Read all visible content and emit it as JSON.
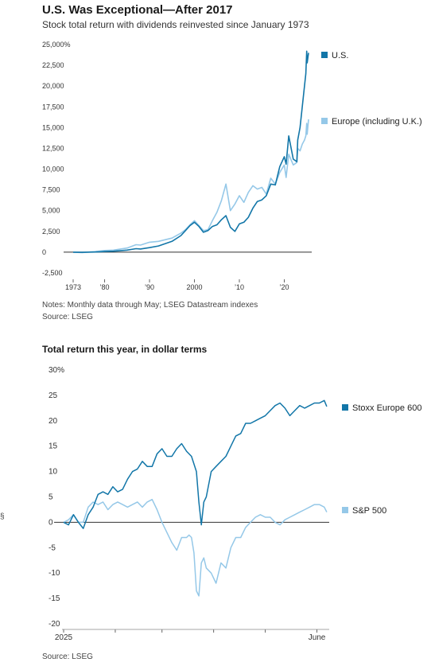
{
  "chart_data": [
    {
      "type": "line",
      "title": "U.S. Was Exceptional—After 2017",
      "subtitle": "Stock total return with dividends reinvested since January 1973",
      "ylim": [
        -2500,
        25000
      ],
      "y_ticks": [
        {
          "value": 25000,
          "label": "25,000%"
        },
        {
          "value": 22500,
          "label": "22,500"
        },
        {
          "value": 20000,
          "label": "20,000"
        },
        {
          "value": 17500,
          "label": "17,500"
        },
        {
          "value": 15000,
          "label": "15,000"
        },
        {
          "value": 12500,
          "label": "12,500"
        },
        {
          "value": 10000,
          "label": "10,000"
        },
        {
          "value": 7500,
          "label": "7,500"
        },
        {
          "value": 5000,
          "label": "5,000"
        },
        {
          "value": 2500,
          "label": "2,500"
        },
        {
          "value": 0,
          "label": "0"
        },
        {
          "value": -2500,
          "label": "-2,500"
        }
      ],
      "xlim": [
        1973,
        2025.4
      ],
      "x_ticks": [
        {
          "value": 1973,
          "label": "1973"
        },
        {
          "value": 1980,
          "label": "’80"
        },
        {
          "value": 1990,
          "label": "’90"
        },
        {
          "value": 2000,
          "label": "2000"
        },
        {
          "value": 2010,
          "label": "’10"
        },
        {
          "value": 2020,
          "label": "’20"
        }
      ],
      "legend_placement": "right",
      "series": [
        {
          "name": "U.S.",
          "color": "#1276a8",
          "x": [
            1973,
            1975,
            1978,
            1980,
            1982,
            1985,
            1987,
            1988,
            1990,
            1992,
            1995,
            1997,
            1998,
            1999,
            2000,
            2001,
            2002,
            2003,
            2004,
            2005,
            2006,
            2007,
            2008,
            2009,
            2010,
            2011,
            2012,
            2013,
            2014,
            2015,
            2016,
            2017,
            2018,
            2019,
            2020,
            2020.4,
            2021,
            2022,
            2022.8,
            2023,
            2023.5,
            2024,
            2024.5,
            2024.8,
            2025,
            2025.1,
            2025.4
          ],
          "y": [
            0,
            -20,
            20,
            80,
            120,
            250,
            420,
            380,
            550,
            750,
            1300,
            2000,
            2600,
            3200,
            3600,
            3100,
            2400,
            2600,
            3100,
            3300,
            3900,
            4400,
            3000,
            2500,
            3400,
            3600,
            4200,
            5300,
            6100,
            6300,
            6800,
            8200,
            8100,
            10300,
            11500,
            10600,
            14000,
            11200,
            10900,
            13500,
            15000,
            17500,
            20000,
            21500,
            24200,
            22800,
            24000
          ]
        },
        {
          "name": "Europe (including U.K.)",
          "color": "#95c8e8",
          "x": [
            1973,
            1975,
            1978,
            1980,
            1982,
            1985,
            1987,
            1988,
            1990,
            1992,
            1995,
            1997,
            1998,
            1999,
            2000,
            2001,
            2002,
            2003,
            2004,
            2005,
            2006,
            2007,
            2008,
            2009,
            2010,
            2011,
            2012,
            2013,
            2014,
            2015,
            2016,
            2017,
            2018,
            2019,
            2020,
            2020.4,
            2021,
            2022,
            2022.8,
            2023,
            2023.5,
            2024,
            2024.5,
            2024.8,
            2025,
            2025.1,
            2025.4
          ],
          "y": [
            0,
            -50,
            80,
            200,
            250,
            500,
            900,
            850,
            1200,
            1300,
            1700,
            2300,
            2700,
            3300,
            3800,
            3200,
            2600,
            2700,
            3800,
            4800,
            6200,
            8200,
            5000,
            5800,
            6800,
            6000,
            7200,
            8000,
            7600,
            7800,
            7000,
            8900,
            8200,
            9600,
            10500,
            9000,
            11800,
            10500,
            10800,
            12500,
            12200,
            13000,
            13500,
            14000,
            15500,
            14200,
            16000
          ]
        }
      ]
    },
    {
      "type": "line",
      "title": "Total return this year, in dollar terms",
      "ylim": [
        -20,
        30
      ],
      "y_ticks": [
        {
          "value": 30,
          "label": "30%"
        },
        {
          "value": 25,
          "label": "25"
        },
        {
          "value": 20,
          "label": "20"
        },
        {
          "value": 15,
          "label": "15"
        },
        {
          "value": 10,
          "label": "10"
        },
        {
          "value": 5,
          "label": "5"
        },
        {
          "value": 0,
          "label": "0"
        },
        {
          "value": -5,
          "label": "-5"
        },
        {
          "value": -10,
          "label": "-10"
        },
        {
          "value": -15,
          "label": "-15"
        },
        {
          "value": -20,
          "label": "-20"
        }
      ],
      "x_unit": "trading day of 2025",
      "xlim": [
        0,
        108
      ],
      "x_ticks": [
        {
          "value": 0,
          "label": "2025"
        },
        {
          "value": 21,
          "label": ""
        },
        {
          "value": 40,
          "label": ""
        },
        {
          "value": 61,
          "label": ""
        },
        {
          "value": 82,
          "label": ""
        },
        {
          "value": 103,
          "label": "June"
        }
      ],
      "legend_placement": "right",
      "series": [
        {
          "name": "Stoxx Europe 600",
          "color": "#1276a8",
          "x": [
            0,
            2,
            4,
            6,
            8,
            10,
            12,
            14,
            16,
            18,
            20,
            22,
            24,
            26,
            28,
            30,
            32,
            34,
            36,
            38,
            40,
            42,
            44,
            46,
            48,
            50,
            52,
            54,
            55,
            56,
            57,
            58,
            60,
            62,
            64,
            66,
            68,
            70,
            72,
            74,
            76,
            78,
            80,
            82,
            84,
            86,
            88,
            90,
            92,
            94,
            96,
            98,
            100,
            102,
            104,
            106,
            107
          ],
          "y": [
            0,
            -0.5,
            1.5,
            0,
            -1.2,
            1.5,
            3,
            5.5,
            6,
            5.5,
            7,
            6,
            6.5,
            8.5,
            10,
            10.5,
            12,
            11,
            11,
            13.5,
            14.5,
            13,
            13,
            14.5,
            15.5,
            14,
            13,
            10,
            4,
            -0.5,
            4,
            5,
            10,
            11,
            12,
            13,
            15,
            17,
            17.5,
            19.5,
            19.5,
            20,
            20.5,
            21,
            22,
            23,
            23.5,
            22.5,
            21,
            22,
            23,
            22.5,
            23,
            23.5,
            23.5,
            24,
            22.8
          ]
        },
        {
          "name": "S&P 500",
          "color": "#95c8e8",
          "x": [
            0,
            2,
            4,
            6,
            8,
            10,
            12,
            14,
            16,
            18,
            20,
            22,
            24,
            26,
            28,
            30,
            32,
            34,
            36,
            38,
            40,
            42,
            44,
            46,
            48,
            50,
            51,
            52,
            53,
            54,
            55,
            56,
            57,
            58,
            60,
            62,
            64,
            66,
            68,
            70,
            72,
            74,
            76,
            78,
            80,
            82,
            84,
            86,
            88,
            90,
            92,
            94,
            96,
            98,
            100,
            102,
            104,
            106,
            107
          ],
          "y": [
            0,
            0.5,
            1.5,
            0,
            0,
            3,
            4,
            3.5,
            4,
            2.5,
            3.5,
            4,
            3.5,
            3,
            3.5,
            4,
            3,
            4,
            4.5,
            2.5,
            0,
            -2,
            -4,
            -5.5,
            -3,
            -3,
            -2.5,
            -3,
            -6,
            -13.5,
            -14.5,
            -8,
            -7,
            -9,
            -10,
            -12,
            -8,
            -9,
            -5,
            -3,
            -3,
            -1,
            0,
            1,
            1.5,
            1,
            1,
            0,
            -0.5,
            0.5,
            1,
            1.5,
            2,
            2.5,
            3,
            3.5,
            3.5,
            3,
            2
          ]
        }
      ]
    }
  ],
  "notes": {
    "chart1_notes": "Notes: Monthly data through May; LSEG Datastream indexes",
    "chart1_source": "Source: LSEG",
    "chart2_source": "Source: LSEG",
    "margin_mark": "§"
  }
}
